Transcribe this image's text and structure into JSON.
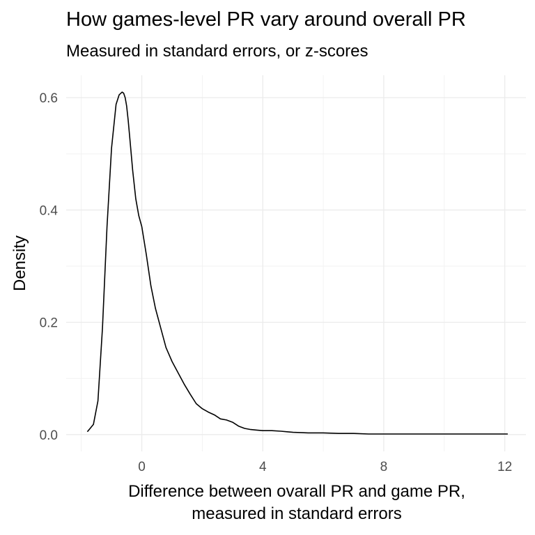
{
  "chart_data": {
    "type": "line",
    "title": "How games-level PR vary around overall PR",
    "subtitle": "Measured in standard errors, or z-scores",
    "xlabel_line1": "Difference between ovarall PR and game PR,",
    "xlabel_line2": "measured in standard errors",
    "ylabel": "Density",
    "xlim": [
      -2.5,
      12.7
    ],
    "ylim": [
      -0.03,
      0.64
    ],
    "x_ticks": [
      0,
      4,
      8,
      12
    ],
    "x_tick_labels": [
      "0",
      "4",
      "8",
      "12"
    ],
    "y_ticks": [
      0.0,
      0.2,
      0.4,
      0.6
    ],
    "y_tick_labels": [
      "0.0",
      "0.2",
      "0.4",
      "0.6"
    ],
    "grid": true,
    "legend": "none",
    "line_color": "#000000",
    "series": [
      {
        "x": [
          -1.8,
          -1.6,
          -1.45,
          -1.3,
          -1.15,
          -1.0,
          -0.85,
          -0.75,
          -0.65,
          -0.6,
          -0.55,
          -0.5,
          -0.45,
          -0.4,
          -0.3,
          -0.2,
          -0.1,
          0.0,
          0.15,
          0.3,
          0.45,
          0.6,
          0.8,
          1.0,
          1.2,
          1.4,
          1.6,
          1.8,
          2.0,
          2.2,
          2.4,
          2.6,
          2.8,
          3.0,
          3.2,
          3.4,
          3.6,
          3.8,
          4.0,
          4.3,
          4.6,
          4.8,
          5.0,
          5.5,
          6.0,
          6.5,
          7.0,
          7.5,
          8.0,
          9.0,
          10.0,
          11.0,
          12.1
        ],
        "y": [
          0.005,
          0.018,
          0.06,
          0.19,
          0.37,
          0.51,
          0.588,
          0.605,
          0.61,
          0.608,
          0.6,
          0.585,
          0.56,
          0.53,
          0.47,
          0.42,
          0.39,
          0.37,
          0.32,
          0.265,
          0.225,
          0.195,
          0.155,
          0.13,
          0.11,
          0.09,
          0.072,
          0.055,
          0.046,
          0.04,
          0.035,
          0.028,
          0.026,
          0.022,
          0.015,
          0.011,
          0.009,
          0.008,
          0.007,
          0.007,
          0.006,
          0.005,
          0.004,
          0.003,
          0.003,
          0.002,
          0.002,
          0.001,
          0.001,
          0.001,
          0.001,
          0.001,
          0.001
        ]
      }
    ]
  }
}
